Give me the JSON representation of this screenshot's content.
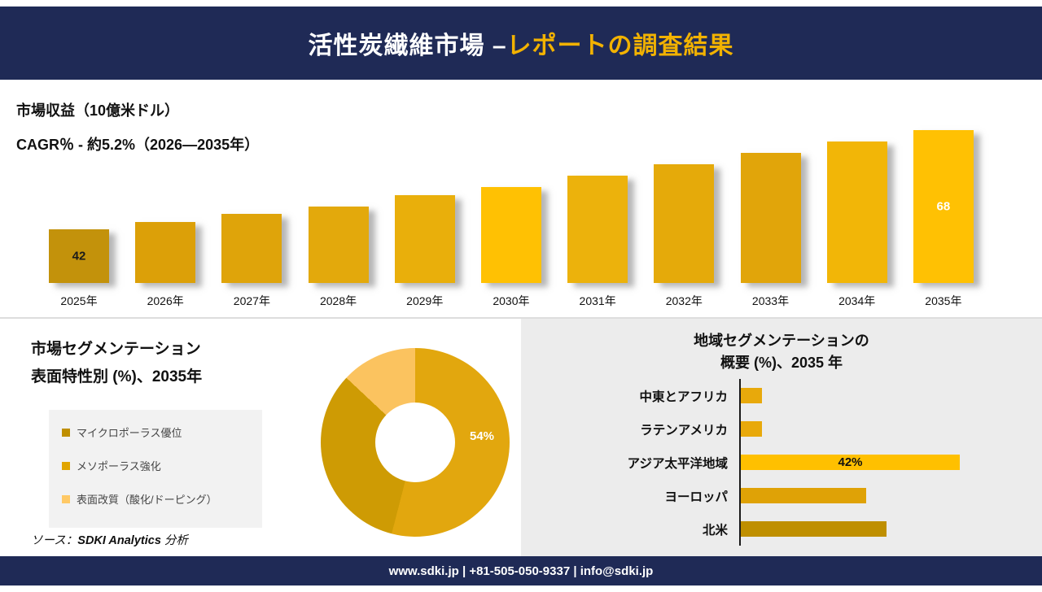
{
  "header": {
    "title_white": "活性炭繊維市場 –",
    "title_gold": "レポートの調査結果",
    "bg_color": "#1F2A56",
    "accent_color": "#F2B201"
  },
  "revenue_chart": {
    "label_line1": "市場収益（10億米ドル）",
    "label_line2": "CAGR％ - 約5.2%（2026―2035年）",
    "bars": [
      {
        "year": "2025年",
        "value": 42,
        "color": "#C3920B",
        "label": "42",
        "label_color": "#1a1a1a"
      },
      {
        "year": "2026年",
        "value": 44,
        "color": "#DCA008"
      },
      {
        "year": "2027年",
        "value": 46,
        "color": "#DFA40A"
      },
      {
        "year": "2028年",
        "value": 48,
        "color": "#E3A90C"
      },
      {
        "year": "2029年",
        "value": 51,
        "color": "#E9AF0B"
      },
      {
        "year": "2030年",
        "value": 53,
        "color": "#FFC103"
      },
      {
        "year": "2031年",
        "value": 56,
        "color": "#ECB20C"
      },
      {
        "year": "2032年",
        "value": 59,
        "color": "#E5AA0A"
      },
      {
        "year": "2033年",
        "value": 62,
        "color": "#E1A50A"
      },
      {
        "year": "2034年",
        "value": 65,
        "color": "#F2B607"
      },
      {
        "year": "2035年",
        "value": 68,
        "color": "#FFC103",
        "label": "68",
        "label_color": "#ffffff"
      }
    ]
  },
  "segmentation": {
    "title_line1": "市場セグメンテーション",
    "title_line2": "表面特性別 (%)、2035年",
    "legend": [
      {
        "label": "マイクロポーラス優位",
        "color": "#BF8F00"
      },
      {
        "label": "メソポーラス強化",
        "color": "#E1A500"
      },
      {
        "label": "表面改質（酸化/ドーピング）",
        "color": "#FFC966"
      }
    ],
    "donut": {
      "segments": [
        {
          "value": 54,
          "color": "#E2A70E",
          "label": "54%"
        },
        {
          "value": 33,
          "color": "#CE9B04"
        },
        {
          "value": 13,
          "color": "#FBC35F"
        }
      ]
    },
    "source_prefix": "ソース：",
    "source_brand": "SDKI Analytics",
    "source_suffix": " 分析"
  },
  "regional": {
    "title_line1": "地域セグメンテーションの",
    "title_line2": "概要 (%)、2035 年",
    "bars": [
      {
        "label": "中東とアフリカ",
        "value": 4,
        "color": "#E8A90B"
      },
      {
        "label": "ラテンアメリカ",
        "value": 4,
        "color": "#E8A90B"
      },
      {
        "label": "アジア太平洋地域",
        "value": 42,
        "color": "#FFC000",
        "value_label": "42%"
      },
      {
        "label": "ヨーロッパ",
        "value": 24,
        "color": "#DFA206"
      },
      {
        "label": "北米",
        "value": 28,
        "color": "#BF8F00"
      }
    ]
  },
  "footer": {
    "text": "www.sdki.jp | +81-505-050-9337 | info@sdki.jp"
  },
  "chart_data": [
    {
      "type": "bar",
      "title": "市場収益（10億米ドル）",
      "subtitle": "CAGR％ - 約5.2%（2026―2035年）",
      "categories": [
        "2025年",
        "2026年",
        "2027年",
        "2028年",
        "2029年",
        "2030年",
        "2031年",
        "2032年",
        "2033年",
        "2034年",
        "2035年"
      ],
      "values": [
        42,
        44,
        46,
        48,
        51,
        53,
        56,
        59,
        62,
        65,
        68
      ],
      "labeled_values": {
        "2025年": 42,
        "2035年": 68
      },
      "xlabel": "",
      "ylabel": "市場収益（10億米ドル）",
      "grid": false,
      "legend_position": "none"
    },
    {
      "type": "pie",
      "title": "市場セグメンテーション 表面特性別 (%)、2035年",
      "categories": [
        "マイクロポーラス優位",
        "メソポーラス強化",
        "表面改質（酸化/ドーピング）"
      ],
      "values": [
        54,
        33,
        13
      ],
      "labeled_values": {
        "マイクロポーラス優位": "54%"
      },
      "donut": true,
      "legend_position": "left"
    },
    {
      "type": "bar",
      "orientation": "horizontal",
      "title": "地域セグメンテーションの概要 (%)、2035 年",
      "categories": [
        "中東とアフリカ",
        "ラテンアメリカ",
        "アジア太平洋地域",
        "ヨーロッパ",
        "北米"
      ],
      "values": [
        4,
        4,
        42,
        24,
        28
      ],
      "labeled_values": {
        "アジア太平洋地域": "42%"
      },
      "xlim": [
        0,
        50
      ],
      "grid": false,
      "legend_position": "none"
    }
  ]
}
